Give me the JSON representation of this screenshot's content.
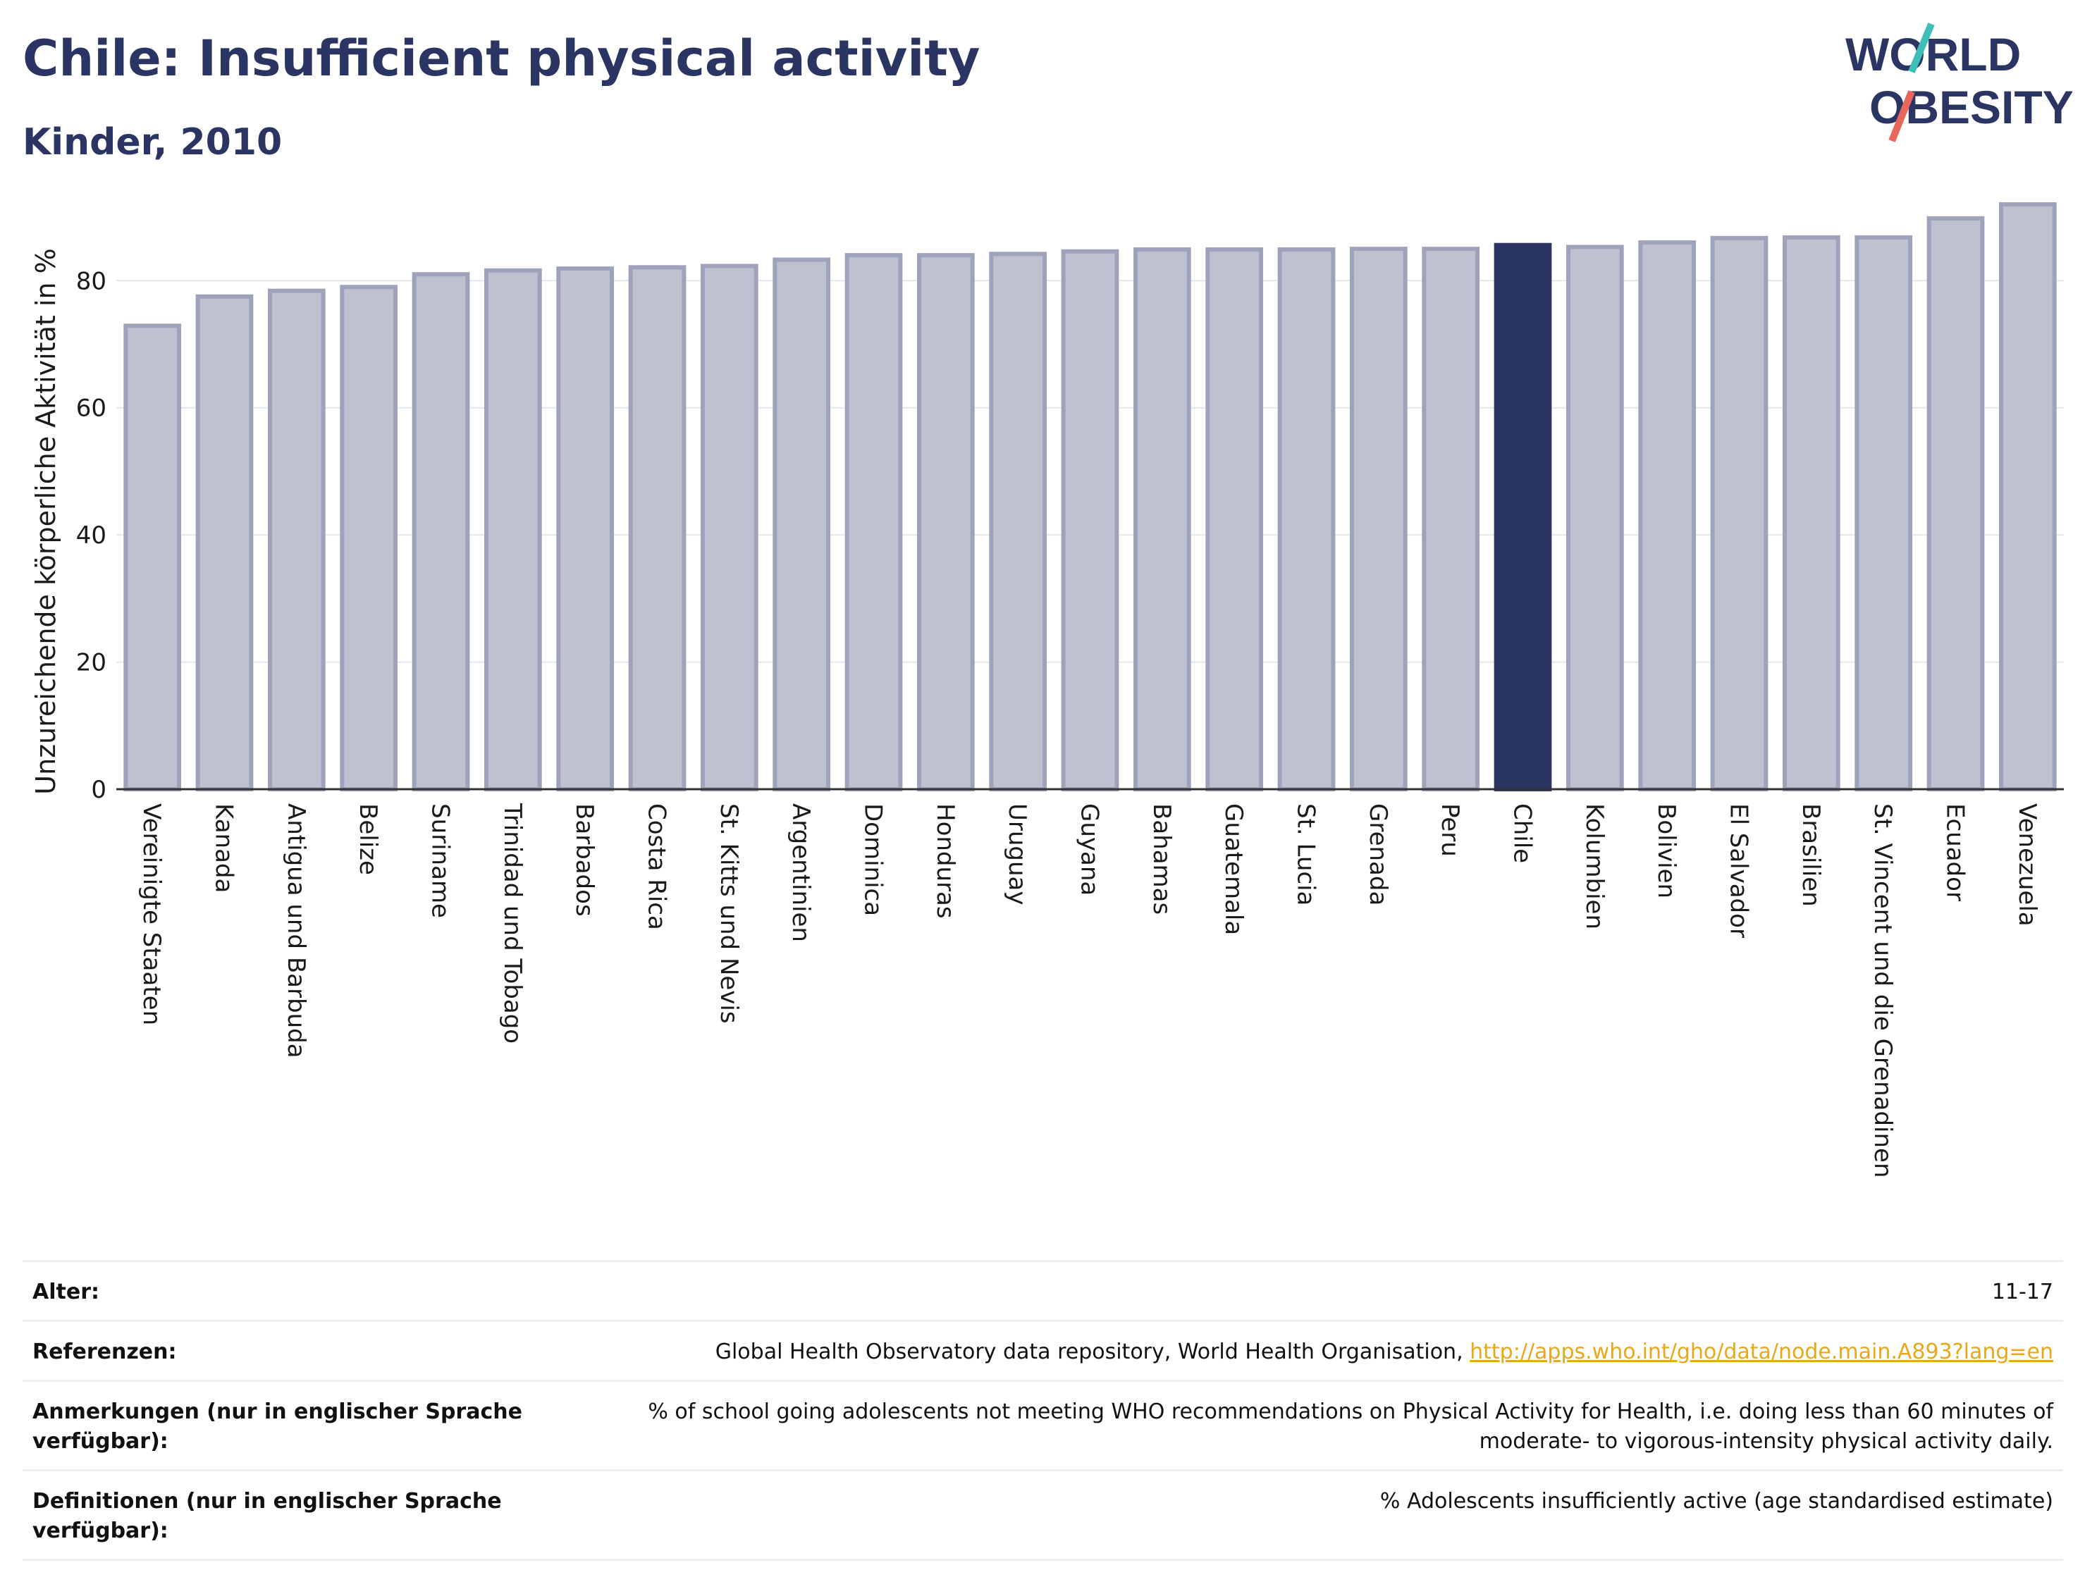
{
  "header": {
    "title": "Chile: Insufficient physical activity",
    "subtitle": "Kinder, 2010"
  },
  "logo": {
    "line1": "WORLD",
    "line2": "OBESITY",
    "accent_teal": "#3dbfb8",
    "accent_coral": "#e8675a",
    "text_color": "#2b3563"
  },
  "chart_data": {
    "type": "bar",
    "title": "Chile: Insufficient physical activity",
    "subtitle": "Kinder, 2010",
    "xlabel": "",
    "ylabel": "Unzureichende körperliche Aktivität in %",
    "ylim": [
      0,
      92
    ],
    "yticks": [
      0,
      20,
      40,
      60,
      80
    ],
    "grid": true,
    "highlight": "Chile",
    "colors": {
      "bar": "#bec1d0",
      "bar_border": "#9ea3bb",
      "highlight": "#2b3563"
    },
    "categories": [
      "Vereinigte Staaten",
      "Kanada",
      "Antigua und Barbuda",
      "Belize",
      "Suriname",
      "Trinidad und Tobago",
      "Barbados",
      "Costa Rica",
      "St. Kitts und Nevis",
      "Argentinien",
      "Dominica",
      "Honduras",
      "Uruguay",
      "Guyana",
      "Bahamas",
      "Guatemala",
      "St. Lucia",
      "Grenada",
      "Peru",
      "Chile",
      "Kolumbien",
      "Bolivien",
      "El Salvador",
      "Brasilien",
      "St. Vincent und die Grenadinen",
      "Ecuador",
      "Venezuela"
    ],
    "values": [
      72.9,
      77.5,
      78.4,
      79.0,
      81.0,
      81.6,
      81.9,
      82.1,
      82.3,
      83.3,
      84.0,
      84.0,
      84.2,
      84.6,
      84.9,
      84.9,
      84.9,
      85.0,
      85.0,
      85.6,
      85.3,
      86.0,
      86.7,
      86.8,
      86.8,
      89.8,
      92.0
    ]
  },
  "meta": [
    {
      "label": "Alter:",
      "value": "11-17"
    },
    {
      "label": "Referenzen:",
      "value": "Global Health Observatory data repository, World Health Organisation, ",
      "link": "http://apps.who.int/gho/data/node.main.A893?lang=en"
    },
    {
      "label": "Anmerkungen (nur in englischer Sprache verfügbar):",
      "value": "% of school going adolescents not meeting WHO recommendations on Physical Activity for Health, i.e. doing less than 60 minutes of moderate- to vigorous-intensity physical activity daily."
    },
    {
      "label": "Definitionen (nur in englischer Sprache verfügbar):",
      "value": "% Adolescents insufficiently active (age standardised estimate)"
    }
  ]
}
